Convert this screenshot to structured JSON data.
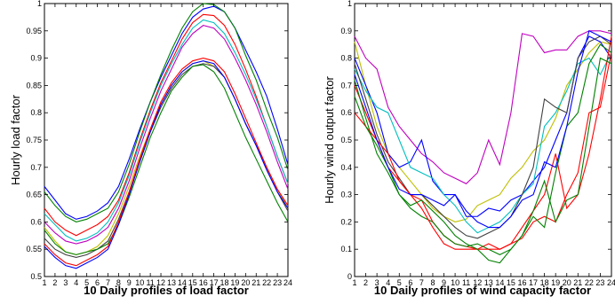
{
  "chart_data": [
    {
      "type": "line",
      "xlabel": "10 Daily profiles of load factor",
      "ylabel": "Hourly load factor",
      "xlim": [
        1,
        24
      ],
      "ylim": [
        0.5,
        1.0
      ],
      "xticks": [
        "1",
        "2",
        "3",
        "4",
        "5",
        "6",
        "7",
        "8",
        "9",
        "10",
        "11",
        "12",
        "13",
        "14",
        "15",
        "16",
        "17",
        "18",
        "19",
        "20",
        "21",
        "22",
        "23",
        "24"
      ],
      "yticks": [
        "0.5",
        "0.55",
        "0.6",
        "0.65",
        "0.7",
        "0.75",
        "0.8",
        "0.85",
        "0.9",
        "0.95",
        "1"
      ],
      "grid": false,
      "x": [
        1,
        2,
        3,
        4,
        5,
        6,
        7,
        8,
        9,
        10,
        11,
        12,
        13,
        14,
        15,
        16,
        17,
        18,
        19,
        20,
        21,
        22,
        23,
        24
      ],
      "series": [
        {
          "color": "#0000ff",
          "values": [
            0.665,
            0.64,
            0.615,
            0.605,
            0.61,
            0.62,
            0.635,
            0.665,
            0.715,
            0.77,
            0.82,
            0.865,
            0.905,
            0.945,
            0.975,
            0.99,
            0.995,
            0.985,
            0.955,
            0.915,
            0.875,
            0.83,
            0.77,
            0.705
          ]
        },
        {
          "color": "#008000",
          "values": [
            0.655,
            0.63,
            0.61,
            0.6,
            0.605,
            0.615,
            0.625,
            0.655,
            0.705,
            0.765,
            0.82,
            0.87,
            0.915,
            0.955,
            0.985,
            1.0,
            0.998,
            0.985,
            0.955,
            0.905,
            0.86,
            0.805,
            0.755,
            0.695
          ]
        },
        {
          "color": "#ff0000",
          "values": [
            0.625,
            0.6,
            0.585,
            0.575,
            0.585,
            0.595,
            0.61,
            0.64,
            0.69,
            0.75,
            0.805,
            0.855,
            0.895,
            0.935,
            0.965,
            0.98,
            0.978,
            0.96,
            0.925,
            0.88,
            0.83,
            0.775,
            0.72,
            0.67
          ]
        },
        {
          "color": "#00bfbf",
          "values": [
            0.615,
            0.595,
            0.575,
            0.565,
            0.57,
            0.58,
            0.6,
            0.635,
            0.685,
            0.745,
            0.8,
            0.85,
            0.89,
            0.925,
            0.955,
            0.97,
            0.965,
            0.945,
            0.91,
            0.87,
            0.825,
            0.775,
            0.72,
            0.67
          ]
        },
        {
          "color": "#bf00bf",
          "values": [
            0.6,
            0.58,
            0.565,
            0.56,
            0.565,
            0.575,
            0.59,
            0.625,
            0.675,
            0.735,
            0.79,
            0.84,
            0.88,
            0.92,
            0.945,
            0.96,
            0.955,
            0.935,
            0.9,
            0.86,
            0.815,
            0.765,
            0.71,
            0.66
          ]
        },
        {
          "color": "#bfbf00",
          "values": [
            0.59,
            0.565,
            0.545,
            0.54,
            0.545,
            0.555,
            0.575,
            0.615,
            0.665,
            0.72,
            0.77,
            0.815,
            0.85,
            0.875,
            0.89,
            0.895,
            0.885,
            0.865,
            0.825,
            0.78,
            0.74,
            0.7,
            0.66,
            0.625
          ]
        },
        {
          "color": "#404040",
          "values": [
            0.57,
            0.55,
            0.54,
            0.535,
            0.54,
            0.55,
            0.565,
            0.605,
            0.655,
            0.71,
            0.765,
            0.81,
            0.845,
            0.87,
            0.885,
            0.89,
            0.885,
            0.865,
            0.825,
            0.78,
            0.74,
            0.695,
            0.655,
            0.62
          ]
        },
        {
          "color": "#008000",
          "values": [
            0.585,
            0.56,
            0.545,
            0.54,
            0.545,
            0.55,
            0.56,
            0.595,
            0.645,
            0.7,
            0.755,
            0.8,
            0.84,
            0.865,
            0.885,
            0.888,
            0.875,
            0.845,
            0.8,
            0.755,
            0.715,
            0.675,
            0.635,
            0.6
          ]
        },
        {
          "color": "#0000ff",
          "values": [
            0.555,
            0.535,
            0.52,
            0.515,
            0.525,
            0.535,
            0.55,
            0.595,
            0.65,
            0.71,
            0.765,
            0.815,
            0.85,
            0.875,
            0.89,
            0.895,
            0.89,
            0.865,
            0.825,
            0.78,
            0.74,
            0.695,
            0.655,
            0.625
          ]
        },
        {
          "color": "#ff0000",
          "values": [
            0.56,
            0.54,
            0.525,
            0.52,
            0.53,
            0.54,
            0.555,
            0.6,
            0.655,
            0.715,
            0.77,
            0.82,
            0.855,
            0.88,
            0.895,
            0.9,
            0.895,
            0.875,
            0.835,
            0.79,
            0.745,
            0.7,
            0.66,
            0.63
          ]
        }
      ]
    },
    {
      "type": "line",
      "xlabel": "10 Daily profiles of wind capacity factor",
      "ylabel": "Hourly wind output factor",
      "xlim": [
        1,
        24
      ],
      "ylim": [
        0,
        1.0
      ],
      "xticks": [
        "1",
        "2",
        "3",
        "4",
        "5",
        "6",
        "7",
        "8",
        "9",
        "10",
        "11",
        "12",
        "13",
        "14",
        "15",
        "16",
        "17",
        "18",
        "19",
        "20",
        "21",
        "22",
        "23",
        "24"
      ],
      "yticks": [
        "0",
        "0.1",
        "0.2",
        "0.3",
        "0.4",
        "0.5",
        "0.6",
        "0.7",
        "0.8",
        "0.9",
        "1"
      ],
      "grid": false,
      "x": [
        1,
        2,
        3,
        4,
        5,
        6,
        7,
        8,
        9,
        10,
        11,
        12,
        13,
        14,
        15,
        16,
        17,
        18,
        19,
        20,
        21,
        22,
        23,
        24
      ],
      "series": [
        {
          "color": "#bf00bf",
          "values": [
            0.88,
            0.8,
            0.76,
            0.62,
            0.55,
            0.5,
            0.45,
            0.42,
            0.38,
            0.36,
            0.34,
            0.38,
            0.5,
            0.41,
            0.6,
            0.89,
            0.88,
            0.82,
            0.83,
            0.83,
            0.88,
            0.9,
            0.9,
            0.89
          ]
        },
        {
          "color": "#bfbf00",
          "values": [
            0.86,
            0.7,
            0.55,
            0.45,
            0.4,
            0.35,
            0.3,
            0.25,
            0.22,
            0.2,
            0.21,
            0.26,
            0.28,
            0.3,
            0.36,
            0.4,
            0.46,
            0.5,
            0.58,
            0.7,
            0.76,
            0.82,
            0.86,
            0.85
          ]
        },
        {
          "color": "#0000ff",
          "values": [
            0.8,
            0.7,
            0.6,
            0.45,
            0.4,
            0.42,
            0.5,
            0.35,
            0.3,
            0.3,
            0.22,
            0.22,
            0.25,
            0.24,
            0.28,
            0.3,
            0.35,
            0.4,
            0.5,
            0.6,
            0.8,
            0.88,
            0.86,
            0.8
          ]
        },
        {
          "color": "#00bfbf",
          "values": [
            0.76,
            0.68,
            0.62,
            0.6,
            0.5,
            0.4,
            0.38,
            0.36,
            0.3,
            0.26,
            0.2,
            0.16,
            0.18,
            0.2,
            0.24,
            0.3,
            0.34,
            0.55,
            0.6,
            0.68,
            0.78,
            0.8,
            0.74,
            0.82
          ]
        },
        {
          "color": "#ff0000",
          "values": [
            0.7,
            0.6,
            0.5,
            0.4,
            0.35,
            0.3,
            0.28,
            0.2,
            0.15,
            0.12,
            0.11,
            0.1,
            0.12,
            0.1,
            0.12,
            0.14,
            0.2,
            0.22,
            0.2,
            0.3,
            0.38,
            0.6,
            0.62,
            0.82
          ]
        },
        {
          "color": "#008000",
          "values": [
            0.72,
            0.58,
            0.45,
            0.38,
            0.3,
            0.25,
            0.22,
            0.2,
            0.15,
            0.12,
            0.11,
            0.12,
            0.1,
            0.08,
            0.1,
            0.15,
            0.22,
            0.18,
            0.38,
            0.55,
            0.6,
            0.78,
            0.85,
            0.82
          ]
        },
        {
          "color": "#404040",
          "values": [
            0.78,
            0.65,
            0.52,
            0.42,
            0.36,
            0.3,
            0.3,
            0.26,
            0.22,
            0.18,
            0.15,
            0.14,
            0.16,
            0.18,
            0.22,
            0.3,
            0.4,
            0.65,
            0.62,
            0.6,
            0.8,
            0.86,
            0.88,
            0.85
          ]
        },
        {
          "color": "#ff0000",
          "values": [
            0.6,
            0.55,
            0.5,
            0.45,
            0.35,
            0.3,
            0.25,
            0.18,
            0.12,
            0.1,
            0.1,
            0.1,
            0.1,
            0.1,
            0.12,
            0.18,
            0.24,
            0.3,
            0.45,
            0.25,
            0.3,
            0.45,
            0.65,
            0.88
          ]
        },
        {
          "color": "#008000",
          "values": [
            0.66,
            0.55,
            0.48,
            0.4,
            0.3,
            0.26,
            0.28,
            0.24,
            0.2,
            0.15,
            0.12,
            0.1,
            0.06,
            0.05,
            0.1,
            0.15,
            0.24,
            0.35,
            0.2,
            0.28,
            0.3,
            0.55,
            0.8,
            0.78
          ]
        },
        {
          "color": "#0000ff",
          "values": [
            0.74,
            0.62,
            0.5,
            0.4,
            0.32,
            0.3,
            0.3,
            0.28,
            0.26,
            0.3,
            0.24,
            0.2,
            0.18,
            0.18,
            0.22,
            0.28,
            0.3,
            0.42,
            0.4,
            0.55,
            0.75,
            0.9,
            0.88,
            0.86
          ]
        }
      ]
    }
  ]
}
